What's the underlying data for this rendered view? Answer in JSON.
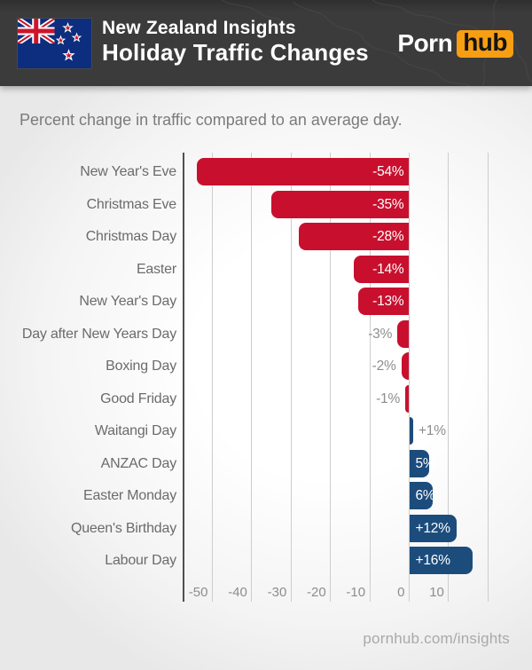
{
  "header": {
    "kicker": "New Zealand Insights",
    "title": "Holiday Traffic Changes",
    "logo": {
      "word1": "Porn",
      "word2": "hub"
    }
  },
  "subtitle": "Percent change in traffic compared to an average day.",
  "footer": {
    "link_text": "pornhub.com/insights"
  },
  "colors": {
    "header_bg": "#3b3b3b",
    "logo_orange": "#f89e13",
    "bar_negative": "#c8102e",
    "bar_positive": "#1c4c7c",
    "flag_blue": "#0d2e7e",
    "flag_red": "#cc142b"
  },
  "chart_data": {
    "type": "bar",
    "orientation": "horizontal",
    "title": "",
    "xlabel": "",
    "ylabel": "",
    "grid": true,
    "legend": false,
    "xlim": [
      -57.5,
      20
    ],
    "categories": [
      "New Year's Eve",
      "Christmas Eve",
      "Christmas Day",
      "Easter",
      "New Year's Day",
      "Day after New Years Day",
      "Boxing Day",
      "Good Friday",
      "Waitangi Day",
      "ANZAC Day",
      "Easter Monday",
      "Queen's Birthday",
      "Labour Day"
    ],
    "values": [
      -54,
      -35,
      -28,
      -14,
      -13,
      -3,
      -2,
      -1,
      1,
      5,
      6,
      12,
      16
    ],
    "value_labels": [
      "-54%",
      "-35%",
      "-28%",
      "-14%",
      "-13%",
      "-3%",
      "-2%",
      "-1%",
      "+1%",
      "5%",
      "6%",
      "+12%",
      "+16%"
    ],
    "x_ticks": [
      -50,
      -40,
      -30,
      -20,
      -10,
      0,
      10
    ],
    "x_tick_labels": [
      "-50",
      "-40",
      "-30",
      "-20",
      "-10",
      "0",
      "10"
    ],
    "x_grid": [
      -50,
      -40,
      -30,
      -20,
      -10,
      0,
      10,
      20
    ],
    "bar_color_negative": "#c8102e",
    "bar_color_positive": "#1c4c7c"
  }
}
